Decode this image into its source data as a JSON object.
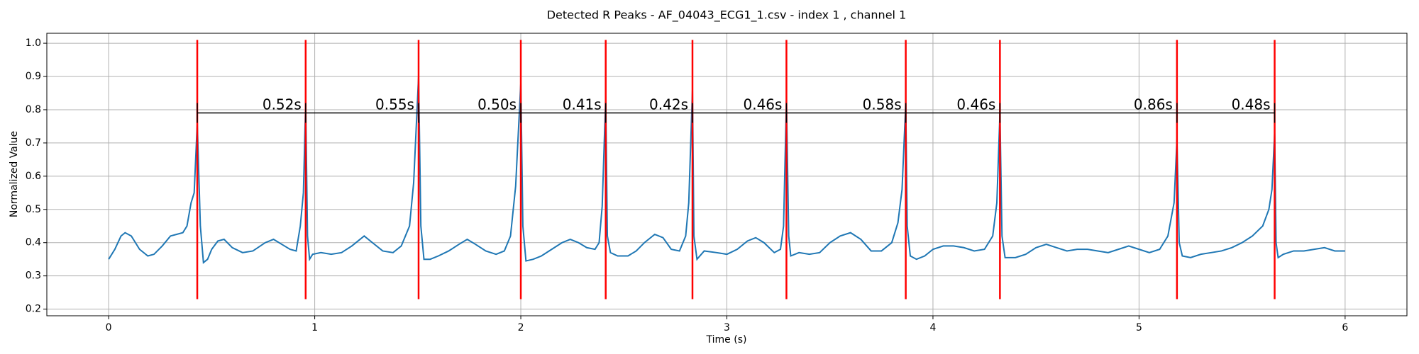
{
  "chart_data": {
    "type": "line",
    "title": "Detected R Peaks - AF_04043_ECG1_1.csv - index 1 , channel 1",
    "xlabel": "Time (s)",
    "ylabel": "Normalized Value",
    "xlim": [
      -0.3,
      6.3
    ],
    "ylim": [
      0.18,
      1.03
    ],
    "xticks": [
      0,
      1,
      2,
      3,
      4,
      5,
      6
    ],
    "yticks": [
      0.2,
      0.3,
      0.4,
      0.5,
      0.6,
      0.7,
      0.8,
      0.9,
      {
        "value": 1,
        "label": "1.0"
      }
    ],
    "grid": true,
    "series": [
      {
        "color": "#1f77b4",
        "x": [
          0.0,
          0.03,
          0.06,
          0.08,
          0.11,
          0.15,
          0.19,
          0.22,
          0.26,
          0.3,
          0.33,
          0.36,
          0.38,
          0.4,
          0.415,
          0.43,
          0.445,
          0.46,
          0.48,
          0.5,
          0.53,
          0.56,
          0.6,
          0.65,
          0.7,
          0.76,
          0.8,
          0.84,
          0.88,
          0.91,
          0.93,
          0.945,
          0.956,
          0.965,
          0.975,
          0.99,
          1.03,
          1.08,
          1.13,
          1.18,
          1.24,
          1.28,
          1.33,
          1.38,
          1.42,
          1.46,
          1.48,
          1.504,
          1.515,
          1.53,
          1.56,
          1.6,
          1.65,
          1.7,
          1.74,
          1.78,
          1.83,
          1.88,
          1.92,
          1.95,
          1.975,
          2.0,
          2.01,
          2.025,
          2.06,
          2.1,
          2.15,
          2.2,
          2.24,
          2.28,
          2.32,
          2.36,
          2.38,
          2.395,
          2.412,
          2.42,
          2.435,
          2.47,
          2.52,
          2.56,
          2.6,
          2.65,
          2.69,
          2.73,
          2.77,
          2.8,
          2.815,
          2.833,
          2.84,
          2.855,
          2.89,
          2.95,
          3.0,
          3.05,
          3.1,
          3.14,
          3.18,
          3.23,
          3.26,
          3.275,
          3.289,
          3.3,
          3.31,
          3.35,
          3.4,
          3.45,
          3.5,
          3.55,
          3.6,
          3.65,
          3.7,
          3.75,
          3.8,
          3.83,
          3.85,
          3.868,
          3.875,
          3.89,
          3.92,
          3.96,
          4.0,
          4.05,
          4.1,
          4.15,
          4.2,
          4.25,
          4.29,
          4.31,
          4.325,
          4.335,
          4.35,
          4.4,
          4.45,
          4.5,
          4.55,
          4.6,
          4.65,
          4.7,
          4.75,
          4.8,
          4.85,
          4.9,
          4.95,
          5.0,
          5.05,
          5.1,
          5.14,
          5.17,
          5.184,
          5.195,
          5.21,
          5.25,
          5.3,
          5.35,
          5.4,
          5.45,
          5.5,
          5.55,
          5.6,
          5.63,
          5.645,
          5.658,
          5.665,
          5.675,
          5.7,
          5.75,
          5.8,
          5.85,
          5.9,
          5.95,
          6.0
        ],
        "values": [
          0.35,
          0.38,
          0.42,
          0.43,
          0.42,
          0.38,
          0.36,
          0.365,
          0.39,
          0.42,
          0.425,
          0.43,
          0.45,
          0.52,
          0.55,
          0.76,
          0.45,
          0.34,
          0.35,
          0.38,
          0.405,
          0.41,
          0.385,
          0.37,
          0.375,
          0.4,
          0.41,
          0.395,
          0.38,
          0.375,
          0.45,
          0.55,
          0.82,
          0.42,
          0.35,
          0.365,
          0.37,
          0.365,
          0.37,
          0.39,
          0.42,
          0.4,
          0.375,
          0.37,
          0.39,
          0.45,
          0.58,
          0.9,
          0.45,
          0.35,
          0.35,
          0.36,
          0.375,
          0.395,
          0.41,
          0.395,
          0.375,
          0.365,
          0.375,
          0.42,
          0.57,
          0.88,
          0.45,
          0.345,
          0.35,
          0.36,
          0.38,
          0.4,
          0.41,
          0.4,
          0.385,
          0.38,
          0.4,
          0.51,
          0.84,
          0.42,
          0.37,
          0.36,
          0.36,
          0.375,
          0.4,
          0.425,
          0.415,
          0.38,
          0.375,
          0.42,
          0.52,
          0.86,
          0.42,
          0.35,
          0.375,
          0.37,
          0.365,
          0.38,
          0.405,
          0.415,
          0.4,
          0.37,
          0.38,
          0.45,
          0.83,
          0.42,
          0.36,
          0.37,
          0.365,
          0.37,
          0.4,
          0.42,
          0.43,
          0.41,
          0.375,
          0.375,
          0.4,
          0.46,
          0.56,
          0.82,
          0.45,
          0.36,
          0.35,
          0.36,
          0.38,
          0.39,
          0.39,
          0.385,
          0.375,
          0.38,
          0.42,
          0.52,
          0.79,
          0.42,
          0.355,
          0.355,
          0.365,
          0.385,
          0.395,
          0.385,
          0.375,
          0.38,
          0.38,
          0.375,
          0.37,
          0.38,
          0.39,
          0.38,
          0.37,
          0.38,
          0.42,
          0.52,
          0.71,
          0.4,
          0.36,
          0.355,
          0.365,
          0.37,
          0.375,
          0.385,
          0.4,
          0.42,
          0.45,
          0.5,
          0.56,
          0.73,
          0.4,
          0.355,
          0.365,
          0.375,
          0.375,
          0.38,
          0.385,
          0.375,
          0.375
        ]
      }
    ],
    "peaks": {
      "color": "#ff0000",
      "x": [
        0.43,
        0.956,
        1.504,
        2.0,
        2.412,
        2.833,
        3.289,
        3.868,
        4.325,
        5.184,
        5.658
      ]
    },
    "intervals": {
      "color": "#000000",
      "values": [
        0.52,
        0.55,
        0.5,
        0.41,
        0.42,
        0.46,
        0.58,
        0.46,
        0.86,
        0.48
      ],
      "value_labels": [
        "0.52s",
        "0.55s",
        "0.50s",
        "0.41s",
        "0.42s",
        "0.46s",
        "0.58s",
        "0.46s",
        "0.86s",
        "0.48s"
      ]
    }
  }
}
